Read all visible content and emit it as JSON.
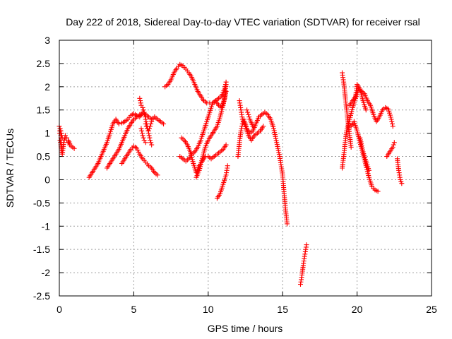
{
  "chart_data": {
    "type": "scatter",
    "title": "Day 222 of 2018, Sidereal Day-to-day VTEC variation (SDTVAR) for receiver rsal",
    "xlabel": "GPS time / hours",
    "ylabel": "SDTVAR / TECUs",
    "xlim": [
      0,
      25
    ],
    "ylim": [
      -2.5,
      3
    ],
    "xticks": [
      "0",
      "5",
      "10",
      "15",
      "20",
      "25"
    ],
    "yticks": [
      "-2.5",
      "-2",
      "-1.5",
      "-1",
      "-0.5",
      "0",
      "0.5",
      "1",
      "1.5",
      "2",
      "2.5",
      "3"
    ],
    "grid": true,
    "marker": "+",
    "color": "#ff0000",
    "series": [
      {
        "segments": [
          [
            [
              0.0,
              1.15
            ],
            [
              0.1,
              1.05
            ],
            [
              0.2,
              0.9
            ],
            [
              0.3,
              0.85
            ],
            [
              0.4,
              0.9
            ],
            [
              0.5,
              0.85
            ],
            [
              0.6,
              0.8
            ],
            [
              0.7,
              0.75
            ],
            [
              0.8,
              0.72
            ],
            [
              0.9,
              0.7
            ],
            [
              1.0,
              0.67
            ]
          ],
          [
            [
              0.05,
              0.85
            ],
            [
              0.1,
              0.75
            ],
            [
              0.15,
              0.62
            ],
            [
              0.2,
              0.55
            ],
            [
              0.3,
              0.8
            ],
            [
              0.4,
              0.95
            ],
            [
              0.5,
              0.9
            ],
            [
              0.6,
              0.85
            ],
            [
              0.7,
              0.78
            ]
          ],
          [
            [
              0.02,
              1.0
            ],
            [
              0.05,
              1.1
            ],
            [
              0.1,
              0.95
            ],
            [
              0.15,
              0.7
            ]
          ],
          [
            [
              2.0,
              0.05
            ],
            [
              2.2,
              0.15
            ],
            [
              2.4,
              0.25
            ],
            [
              2.6,
              0.35
            ],
            [
              2.8,
              0.5
            ],
            [
              3.0,
              0.65
            ],
            [
              3.2,
              0.8
            ],
            [
              3.4,
              1.0
            ],
            [
              3.6,
              1.2
            ],
            [
              3.8,
              1.3
            ],
            [
              4.0,
              1.2
            ],
            [
              4.2,
              1.22
            ],
            [
              4.4,
              1.25
            ],
            [
              4.6,
              1.3
            ],
            [
              4.8,
              1.38
            ],
            [
              5.0,
              1.42
            ],
            [
              5.2,
              1.38
            ],
            [
              5.4,
              1.35
            ],
            [
              5.6,
              1.45
            ],
            [
              5.8,
              1.4
            ],
            [
              6.0,
              1.35
            ],
            [
              6.2,
              1.3
            ],
            [
              6.4,
              1.35
            ],
            [
              6.6,
              1.3
            ],
            [
              6.8,
              1.25
            ],
            [
              7.0,
              1.2
            ]
          ],
          [
            [
              3.2,
              0.25
            ],
            [
              3.4,
              0.35
            ],
            [
              3.6,
              0.45
            ],
            [
              3.8,
              0.55
            ],
            [
              4.0,
              0.65
            ],
            [
              4.2,
              0.8
            ],
            [
              4.4,
              0.95
            ],
            [
              4.6,
              1.1
            ],
            [
              4.8,
              1.2
            ],
            [
              5.0,
              1.3
            ],
            [
              5.2,
              1.35
            ],
            [
              5.4,
              1.4
            ]
          ],
          [
            [
              4.2,
              0.35
            ],
            [
              4.4,
              0.45
            ],
            [
              4.6,
              0.55
            ],
            [
              4.8,
              0.65
            ],
            [
              5.0,
              0.72
            ],
            [
              5.2,
              0.68
            ],
            [
              5.4,
              0.55
            ],
            [
              5.6,
              0.45
            ],
            [
              5.8,
              0.38
            ],
            [
              6.0,
              0.3
            ],
            [
              6.2,
              0.25
            ],
            [
              6.4,
              0.15
            ],
            [
              6.6,
              0.1
            ]
          ],
          [
            [
              5.4,
              1.75
            ],
            [
              5.5,
              1.6
            ],
            [
              5.6,
              1.55
            ],
            [
              5.7,
              1.45
            ],
            [
              5.8,
              1.3
            ],
            [
              5.9,
              1.15
            ],
            [
              6.0,
              1.0
            ],
            [
              6.1,
              0.85
            ],
            [
              6.2,
              0.75
            ]
          ],
          [
            [
              5.8,
              1.2
            ],
            [
              5.9,
              1.1
            ],
            [
              6.0,
              1.05
            ],
            [
              6.1,
              1.15
            ],
            [
              6.2,
              1.25
            ],
            [
              6.3,
              1.3
            ],
            [
              6.4,
              1.35
            ]
          ],
          [
            [
              5.5,
              1.1
            ],
            [
              5.6,
              0.95
            ],
            [
              5.7,
              0.85
            ],
            [
              5.8,
              0.8
            ]
          ],
          [
            [
              7.1,
              2.0
            ],
            [
              7.3,
              2.05
            ],
            [
              7.5,
              2.15
            ],
            [
              7.7,
              2.3
            ],
            [
              7.9,
              2.4
            ],
            [
              8.1,
              2.48
            ],
            [
              8.3,
              2.45
            ],
            [
              8.5,
              2.38
            ],
            [
              8.7,
              2.3
            ],
            [
              8.9,
              2.2
            ],
            [
              9.1,
              2.05
            ],
            [
              9.3,
              1.9
            ],
            [
              9.5,
              1.8
            ],
            [
              9.7,
              1.7
            ],
            [
              9.9,
              1.65
            ],
            [
              10.1,
              1.65
            ],
            [
              10.3,
              1.65
            ],
            [
              10.5,
              1.7
            ],
            [
              10.7,
              1.75
            ],
            [
              10.9,
              1.8
            ],
            [
              11.1,
              1.95
            ],
            [
              11.2,
              2.1
            ]
          ],
          [
            [
              8.1,
              0.5
            ],
            [
              8.3,
              0.45
            ],
            [
              8.5,
              0.4
            ],
            [
              8.7,
              0.45
            ],
            [
              8.9,
              0.55
            ],
            [
              9.1,
              0.6
            ],
            [
              9.3,
              0.7
            ],
            [
              9.5,
              0.85
            ],
            [
              9.7,
              1.05
            ],
            [
              9.9,
              1.25
            ],
            [
              10.1,
              1.45
            ],
            [
              10.3,
              1.65
            ],
            [
              10.5,
              1.7
            ],
            [
              10.7,
              1.6
            ],
            [
              10.9,
              1.55
            ],
            [
              11.1,
              1.75
            ],
            [
              11.2,
              2.05
            ]
          ],
          [
            [
              8.2,
              0.9
            ],
            [
              8.4,
              0.85
            ],
            [
              8.6,
              0.75
            ],
            [
              8.8,
              0.6
            ],
            [
              9.0,
              0.35
            ],
            [
              9.2,
              0.15
            ],
            [
              9.4,
              0.3
            ],
            [
              9.6,
              0.4
            ],
            [
              9.8,
              0.5
            ],
            [
              10.0,
              0.5
            ],
            [
              10.2,
              0.45
            ],
            [
              10.4,
              0.5
            ],
            [
              10.6,
              0.55
            ],
            [
              10.8,
              0.6
            ],
            [
              11.0,
              0.65
            ],
            [
              11.2,
              0.75
            ]
          ],
          [
            [
              9.2,
              0.05
            ],
            [
              9.4,
              0.2
            ],
            [
              9.6,
              0.45
            ],
            [
              9.8,
              0.7
            ],
            [
              10.0,
              0.85
            ],
            [
              10.2,
              0.95
            ],
            [
              10.4,
              1.05
            ],
            [
              10.6,
              1.15
            ],
            [
              10.8,
              1.35
            ],
            [
              11.0,
              1.6
            ],
            [
              11.2,
              1.9
            ]
          ],
          [
            [
              10.6,
              -0.4
            ],
            [
              10.8,
              -0.3
            ],
            [
              11.0,
              -0.1
            ],
            [
              11.2,
              0.1
            ],
            [
              11.3,
              0.3
            ]
          ],
          [
            [
              12.0,
              0.5
            ],
            [
              12.1,
              0.8
            ],
            [
              12.2,
              1.05
            ],
            [
              12.3,
              1.2
            ],
            [
              12.4,
              1.3
            ],
            [
              12.6,
              1.1
            ],
            [
              12.8,
              1.0
            ],
            [
              13.0,
              1.05
            ],
            [
              13.2,
              1.2
            ],
            [
              13.4,
              1.35
            ],
            [
              13.6,
              1.4
            ],
            [
              13.8,
              1.45
            ],
            [
              14.0,
              1.4
            ],
            [
              14.2,
              1.3
            ],
            [
              14.4,
              1.1
            ],
            [
              14.6,
              0.8
            ],
            [
              14.8,
              0.5
            ],
            [
              15.0,
              0.1
            ],
            [
              15.1,
              -0.3
            ],
            [
              15.2,
              -0.65
            ],
            [
              15.3,
              -0.95
            ]
          ],
          [
            [
              12.1,
              1.7
            ],
            [
              12.2,
              1.5
            ],
            [
              12.3,
              1.3
            ],
            [
              12.5,
              1.15
            ],
            [
              12.7,
              0.95
            ],
            [
              12.9,
              0.85
            ],
            [
              13.1,
              0.95
            ],
            [
              13.3,
              1.0
            ],
            [
              13.5,
              1.05
            ],
            [
              13.7,
              1.15
            ]
          ],
          [
            [
              12.6,
              1.5
            ],
            [
              12.7,
              1.4
            ],
            [
              12.8,
              1.3
            ],
            [
              13.0,
              1.15
            ]
          ],
          [
            [
              16.2,
              -2.25
            ],
            [
              16.3,
              -2.05
            ],
            [
              16.4,
              -1.8
            ],
            [
              16.5,
              -1.6
            ],
            [
              16.6,
              -1.4
            ]
          ],
          [
            [
              19.0,
              0.25
            ],
            [
              19.1,
              0.5
            ],
            [
              19.2,
              0.8
            ],
            [
              19.3,
              1.05
            ],
            [
              19.5,
              1.3
            ],
            [
              19.7,
              1.55
            ],
            [
              19.9,
              1.75
            ],
            [
              20.1,
              1.95
            ],
            [
              20.3,
              1.9
            ],
            [
              20.5,
              1.85
            ],
            [
              20.7,
              1.7
            ],
            [
              20.9,
              1.6
            ],
            [
              21.1,
              1.4
            ],
            [
              21.3,
              1.25
            ],
            [
              21.5,
              1.35
            ],
            [
              21.7,
              1.5
            ],
            [
              21.9,
              1.55
            ],
            [
              22.1,
              1.52
            ],
            [
              22.3,
              1.3
            ],
            [
              22.4,
              1.15
            ]
          ],
          [
            [
              19.0,
              2.3
            ],
            [
              19.1,
              2.1
            ],
            [
              19.2,
              1.8
            ],
            [
              19.3,
              1.5
            ],
            [
              19.4,
              1.2
            ],
            [
              19.5,
              0.95
            ],
            [
              19.6,
              0.7
            ]
          ],
          [
            [
              19.5,
              1.6
            ],
            [
              19.7,
              1.7
            ],
            [
              19.9,
              1.8
            ],
            [
              20.0,
              2.05
            ],
            [
              20.2,
              1.95
            ],
            [
              20.4,
              1.7
            ],
            [
              20.6,
              1.5
            ]
          ],
          [
            [
              19.6,
              1.15
            ],
            [
              19.8,
              1.25
            ],
            [
              20.0,
              1.05
            ],
            [
              20.2,
              0.8
            ],
            [
              20.4,
              0.55
            ],
            [
              20.6,
              0.3
            ],
            [
              20.8,
              0.05
            ],
            [
              21.0,
              -0.15
            ],
            [
              21.2,
              -0.22
            ],
            [
              21.4,
              -0.25
            ]
          ],
          [
            [
              20.2,
              0.9
            ],
            [
              20.4,
              0.6
            ],
            [
              20.6,
              0.4
            ],
            [
              20.8,
              0.2
            ]
          ],
          [
            [
              22.0,
              0.5
            ],
            [
              22.2,
              0.6
            ],
            [
              22.4,
              0.7
            ],
            [
              22.5,
              0.8
            ]
          ],
          [
            [
              22.7,
              0.45
            ],
            [
              22.8,
              0.2
            ],
            [
              22.9,
              0.0
            ],
            [
              23.0,
              -0.08
            ]
          ]
        ]
      }
    ]
  }
}
